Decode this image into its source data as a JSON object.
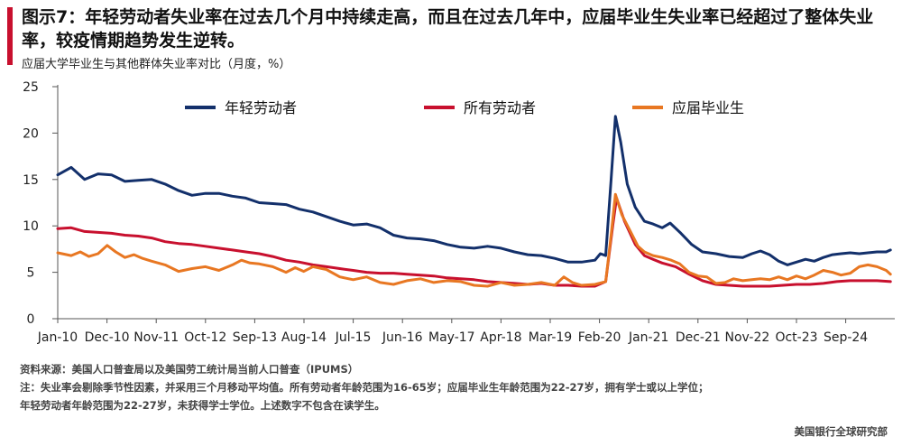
{
  "header": {
    "title": "图示7：年轻劳动者失业率在过去几个月中持续走高，而且在过去几年中，应届毕业生失业率已经超过了整体失业率，较疫情期趋势发生逆转。",
    "subtitle": "应届大学毕业生与其他群体失业率对比（月度，%）"
  },
  "notes": {
    "source": "资料来源：美国人口普查局以及美国劳工统计局当前人口普查（IPUMS）",
    "note1": "注：失业率会剔除季节性因素，并采用三个月移动平均值。所有劳动者年龄范围为16-65岁；应届毕业生年龄范围为22-27岁，拥有学士或以上学位；",
    "note2": "年轻劳动者年龄范围为22-27岁，未获得学士学位。上述数字不包含在读学生。"
  },
  "brand": "美国银行全球研究部",
  "colors": {
    "young": "#13306b",
    "all": "#c8102e",
    "grads": "#e87722",
    "accent": "#c8102e"
  },
  "chart_data": {
    "type": "line",
    "title": "应届大学毕业生与其他群体失业率对比（月度，%）",
    "xlabel": "",
    "ylabel": "%",
    "ylim": [
      0,
      25
    ],
    "yticks": [
      0,
      5,
      10,
      15,
      20,
      25
    ],
    "x_start": "2010-01",
    "x_end": "2025-07",
    "x_tick_labels": [
      "Jan-10",
      "Dec-10",
      "Nov-11",
      "Oct-12",
      "Sep-13",
      "Aug-14",
      "Jul-15",
      "Jun-16",
      "May-17",
      "Apr-18",
      "Mar-19",
      "Feb-20",
      "Jan-21",
      "Dec-21",
      "Nov-22",
      "Oct-23",
      "Sep-24"
    ],
    "legend": [
      "年轻劳动者",
      "所有劳动者",
      "应届毕业生"
    ],
    "series": [
      {
        "name": "年轻劳动者",
        "color_key": "young",
        "points": [
          [
            2010.0,
            15.5
          ],
          [
            2010.25,
            16.3
          ],
          [
            2010.5,
            15.0
          ],
          [
            2010.75,
            15.6
          ],
          [
            2011.0,
            15.5
          ],
          [
            2011.25,
            14.8
          ],
          [
            2011.5,
            14.9
          ],
          [
            2011.75,
            15.0
          ],
          [
            2012.0,
            14.5
          ],
          [
            2012.25,
            13.8
          ],
          [
            2012.5,
            13.3
          ],
          [
            2012.75,
            13.5
          ],
          [
            2013.0,
            13.5
          ],
          [
            2013.25,
            13.2
          ],
          [
            2013.5,
            13.0
          ],
          [
            2013.75,
            12.5
          ],
          [
            2014.0,
            12.4
          ],
          [
            2014.25,
            12.3
          ],
          [
            2014.5,
            11.8
          ],
          [
            2014.75,
            11.5
          ],
          [
            2015.0,
            11.0
          ],
          [
            2015.25,
            10.5
          ],
          [
            2015.5,
            10.1
          ],
          [
            2015.75,
            10.2
          ],
          [
            2016.0,
            9.8
          ],
          [
            2016.25,
            9.0
          ],
          [
            2016.5,
            8.7
          ],
          [
            2016.75,
            8.6
          ],
          [
            2017.0,
            8.4
          ],
          [
            2017.25,
            8.0
          ],
          [
            2017.5,
            7.7
          ],
          [
            2017.75,
            7.6
          ],
          [
            2018.0,
            7.8
          ],
          [
            2018.25,
            7.6
          ],
          [
            2018.5,
            7.2
          ],
          [
            2018.75,
            6.9
          ],
          [
            2019.0,
            6.8
          ],
          [
            2019.25,
            6.5
          ],
          [
            2019.5,
            6.1
          ],
          [
            2019.75,
            6.1
          ],
          [
            2020.0,
            6.3
          ],
          [
            2020.1,
            7.0
          ],
          [
            2020.2,
            6.8
          ],
          [
            2020.3,
            15.0
          ],
          [
            2020.38,
            21.8
          ],
          [
            2020.48,
            19.0
          ],
          [
            2020.6,
            14.5
          ],
          [
            2020.75,
            12.0
          ],
          [
            2020.92,
            10.5
          ],
          [
            2021.08,
            10.2
          ],
          [
            2021.25,
            9.8
          ],
          [
            2021.4,
            10.3
          ],
          [
            2021.6,
            9.2
          ],
          [
            2021.8,
            8.0
          ],
          [
            2022.0,
            7.2
          ],
          [
            2022.25,
            7.0
          ],
          [
            2022.5,
            6.7
          ],
          [
            2022.75,
            6.6
          ],
          [
            2022.92,
            7.0
          ],
          [
            2023.08,
            7.3
          ],
          [
            2023.25,
            6.9
          ],
          [
            2023.42,
            6.2
          ],
          [
            2023.58,
            5.8
          ],
          [
            2023.75,
            6.1
          ],
          [
            2023.92,
            6.4
          ],
          [
            2024.08,
            6.2
          ],
          [
            2024.25,
            6.6
          ],
          [
            2024.42,
            6.9
          ],
          [
            2024.58,
            7.0
          ],
          [
            2024.75,
            7.1
          ],
          [
            2024.92,
            7.0
          ],
          [
            2025.08,
            7.1
          ],
          [
            2025.25,
            7.2
          ],
          [
            2025.42,
            7.2
          ],
          [
            2025.5,
            7.4
          ]
        ]
      },
      {
        "name": "所有劳动者",
        "color_key": "all",
        "points": [
          [
            2010.0,
            9.7
          ],
          [
            2010.25,
            9.8
          ],
          [
            2010.5,
            9.4
          ],
          [
            2010.75,
            9.3
          ],
          [
            2011.0,
            9.2
          ],
          [
            2011.25,
            9.0
          ],
          [
            2011.5,
            8.9
          ],
          [
            2011.75,
            8.7
          ],
          [
            2012.0,
            8.3
          ],
          [
            2012.25,
            8.1
          ],
          [
            2012.5,
            8.0
          ],
          [
            2012.75,
            7.8
          ],
          [
            2013.0,
            7.6
          ],
          [
            2013.25,
            7.4
          ],
          [
            2013.5,
            7.2
          ],
          [
            2013.75,
            7.0
          ],
          [
            2014.0,
            6.7
          ],
          [
            2014.25,
            6.3
          ],
          [
            2014.5,
            6.1
          ],
          [
            2014.75,
            5.8
          ],
          [
            2015.0,
            5.6
          ],
          [
            2015.25,
            5.4
          ],
          [
            2015.5,
            5.2
          ],
          [
            2015.75,
            5.0
          ],
          [
            2016.0,
            4.9
          ],
          [
            2016.25,
            4.9
          ],
          [
            2016.5,
            4.8
          ],
          [
            2016.75,
            4.7
          ],
          [
            2017.0,
            4.6
          ],
          [
            2017.25,
            4.4
          ],
          [
            2017.5,
            4.3
          ],
          [
            2017.75,
            4.2
          ],
          [
            2018.0,
            4.0
          ],
          [
            2018.25,
            3.9
          ],
          [
            2018.5,
            3.8
          ],
          [
            2018.75,
            3.7
          ],
          [
            2019.0,
            3.8
          ],
          [
            2019.25,
            3.6
          ],
          [
            2019.5,
            3.6
          ],
          [
            2019.75,
            3.5
          ],
          [
            2020.0,
            3.5
          ],
          [
            2020.2,
            4.0
          ],
          [
            2020.33,
            10.0
          ],
          [
            2020.4,
            13.0
          ],
          [
            2020.55,
            10.5
          ],
          [
            2020.75,
            8.0
          ],
          [
            2020.92,
            6.8
          ],
          [
            2021.08,
            6.4
          ],
          [
            2021.25,
            6.0
          ],
          [
            2021.5,
            5.6
          ],
          [
            2021.75,
            4.8
          ],
          [
            2022.0,
            4.1
          ],
          [
            2022.25,
            3.7
          ],
          [
            2022.5,
            3.6
          ],
          [
            2022.75,
            3.5
          ],
          [
            2023.0,
            3.5
          ],
          [
            2023.25,
            3.5
          ],
          [
            2023.5,
            3.6
          ],
          [
            2023.75,
            3.7
          ],
          [
            2024.0,
            3.7
          ],
          [
            2024.25,
            3.8
          ],
          [
            2024.5,
            4.0
          ],
          [
            2024.75,
            4.1
          ],
          [
            2025.0,
            4.1
          ],
          [
            2025.25,
            4.1
          ],
          [
            2025.5,
            4.0
          ]
        ]
      },
      {
        "name": "应届毕业生",
        "color_key": "grads",
        "points": [
          [
            2010.0,
            7.1
          ],
          [
            2010.25,
            6.8
          ],
          [
            2010.42,
            7.2
          ],
          [
            2010.58,
            6.7
          ],
          [
            2010.75,
            7.0
          ],
          [
            2010.92,
            7.9
          ],
          [
            2011.08,
            7.2
          ],
          [
            2011.25,
            6.6
          ],
          [
            2011.42,
            6.9
          ],
          [
            2011.58,
            6.5
          ],
          [
            2011.75,
            6.2
          ],
          [
            2012.0,
            5.8
          ],
          [
            2012.25,
            5.1
          ],
          [
            2012.5,
            5.4
          ],
          [
            2012.75,
            5.6
          ],
          [
            2013.0,
            5.2
          ],
          [
            2013.25,
            5.8
          ],
          [
            2013.42,
            6.3
          ],
          [
            2013.58,
            6.0
          ],
          [
            2013.75,
            5.9
          ],
          [
            2014.0,
            5.6
          ],
          [
            2014.25,
            5.0
          ],
          [
            2014.42,
            5.5
          ],
          [
            2014.58,
            5.1
          ],
          [
            2014.75,
            5.6
          ],
          [
            2015.0,
            5.3
          ],
          [
            2015.25,
            4.5
          ],
          [
            2015.5,
            4.2
          ],
          [
            2015.75,
            4.5
          ],
          [
            2016.0,
            3.9
          ],
          [
            2016.25,
            3.7
          ],
          [
            2016.5,
            4.1
          ],
          [
            2016.75,
            4.3
          ],
          [
            2017.0,
            3.9
          ],
          [
            2017.25,
            4.1
          ],
          [
            2017.5,
            4.0
          ],
          [
            2017.75,
            3.6
          ],
          [
            2018.0,
            3.5
          ],
          [
            2018.25,
            3.9
          ],
          [
            2018.5,
            3.6
          ],
          [
            2018.75,
            3.7
          ],
          [
            2019.0,
            3.9
          ],
          [
            2019.25,
            3.6
          ],
          [
            2019.42,
            4.5
          ],
          [
            2019.58,
            3.9
          ],
          [
            2019.75,
            3.6
          ],
          [
            2020.0,
            3.7
          ],
          [
            2020.2,
            4.0
          ],
          [
            2020.3,
            9.0
          ],
          [
            2020.38,
            13.4
          ],
          [
            2020.5,
            11.2
          ],
          [
            2020.65,
            9.5
          ],
          [
            2020.8,
            7.8
          ],
          [
            2020.92,
            7.2
          ],
          [
            2021.08,
            6.8
          ],
          [
            2021.25,
            6.6
          ],
          [
            2021.42,
            6.3
          ],
          [
            2021.58,
            5.9
          ],
          [
            2021.75,
            5.0
          ],
          [
            2021.92,
            4.6
          ],
          [
            2022.08,
            4.5
          ],
          [
            2022.25,
            3.8
          ],
          [
            2022.42,
            3.9
          ],
          [
            2022.58,
            4.3
          ],
          [
            2022.75,
            4.1
          ],
          [
            2022.92,
            4.2
          ],
          [
            2023.08,
            4.3
          ],
          [
            2023.25,
            4.2
          ],
          [
            2023.42,
            4.5
          ],
          [
            2023.58,
            4.2
          ],
          [
            2023.75,
            4.6
          ],
          [
            2023.92,
            4.3
          ],
          [
            2024.08,
            4.7
          ],
          [
            2024.25,
            5.2
          ],
          [
            2024.42,
            5.0
          ],
          [
            2024.58,
            4.7
          ],
          [
            2024.75,
            4.9
          ],
          [
            2024.92,
            5.6
          ],
          [
            2025.08,
            5.8
          ],
          [
            2025.25,
            5.6
          ],
          [
            2025.42,
            5.2
          ],
          [
            2025.5,
            4.8
          ]
        ]
      }
    ]
  }
}
